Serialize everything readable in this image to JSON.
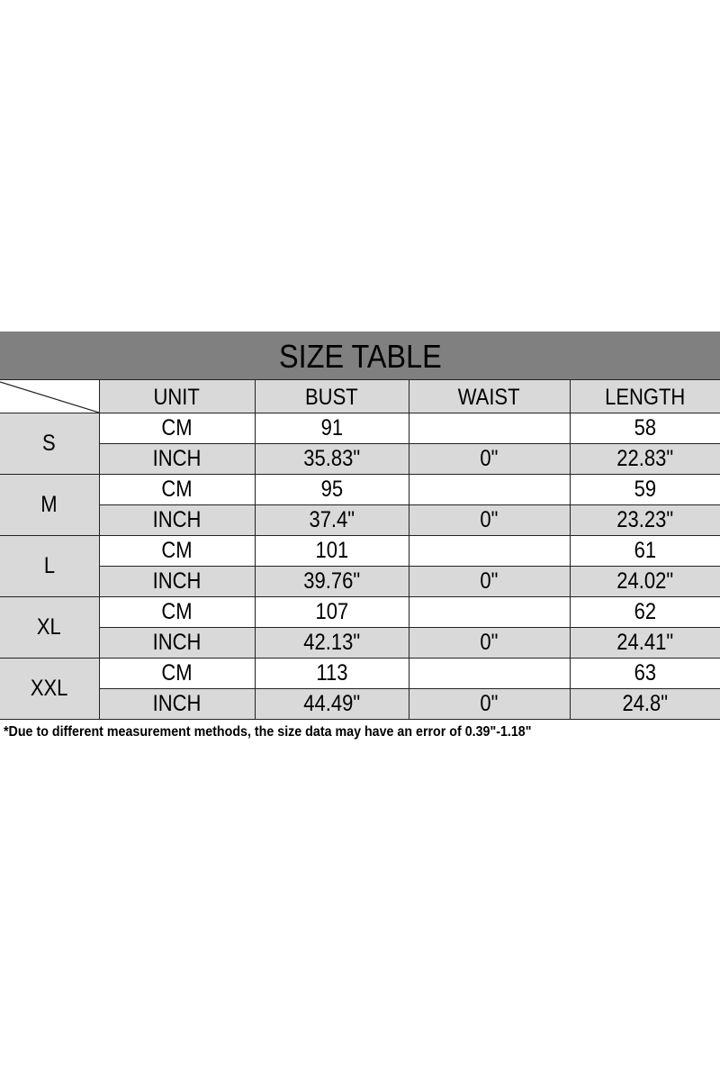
{
  "title": "SIZE TABLE",
  "headers": [
    "UNIT",
    "BUST",
    "WAIST",
    "LENGTH"
  ],
  "rows": [
    {
      "size": "S",
      "cm": {
        "unit": "CM",
        "bust": "91",
        "waist": "",
        "length": "58"
      },
      "inch": {
        "unit": "INCH",
        "bust": "35.83\"",
        "waist": "0\"",
        "length": "22.83\""
      }
    },
    {
      "size": "M",
      "cm": {
        "unit": "CM",
        "bust": "95",
        "waist": "",
        "length": "59"
      },
      "inch": {
        "unit": "INCH",
        "bust": "37.4\"",
        "waist": "0\"",
        "length": "23.23\""
      }
    },
    {
      "size": "L",
      "cm": {
        "unit": "CM",
        "bust": "101",
        "waist": "",
        "length": "61"
      },
      "inch": {
        "unit": "INCH",
        "bust": "39.76\"",
        "waist": "0\"",
        "length": "24.02\""
      }
    },
    {
      "size": "XL",
      "cm": {
        "unit": "CM",
        "bust": "107",
        "waist": "",
        "length": "62"
      },
      "inch": {
        "unit": "INCH",
        "bust": "42.13\"",
        "waist": "0\"",
        "length": "24.41\""
      }
    },
    {
      "size": "XXL",
      "cm": {
        "unit": "CM",
        "bust": "113",
        "waist": "",
        "length": "63"
      },
      "inch": {
        "unit": "INCH",
        "bust": "44.49\"",
        "waist": "0\"",
        "length": "24.8\""
      }
    }
  ],
  "footnote": "*Due to different measurement methods, the size data may have an error of 0.39\"-1.18\"",
  "colors": {
    "title_bg": "#808080",
    "shade": "#d9d9d9"
  }
}
